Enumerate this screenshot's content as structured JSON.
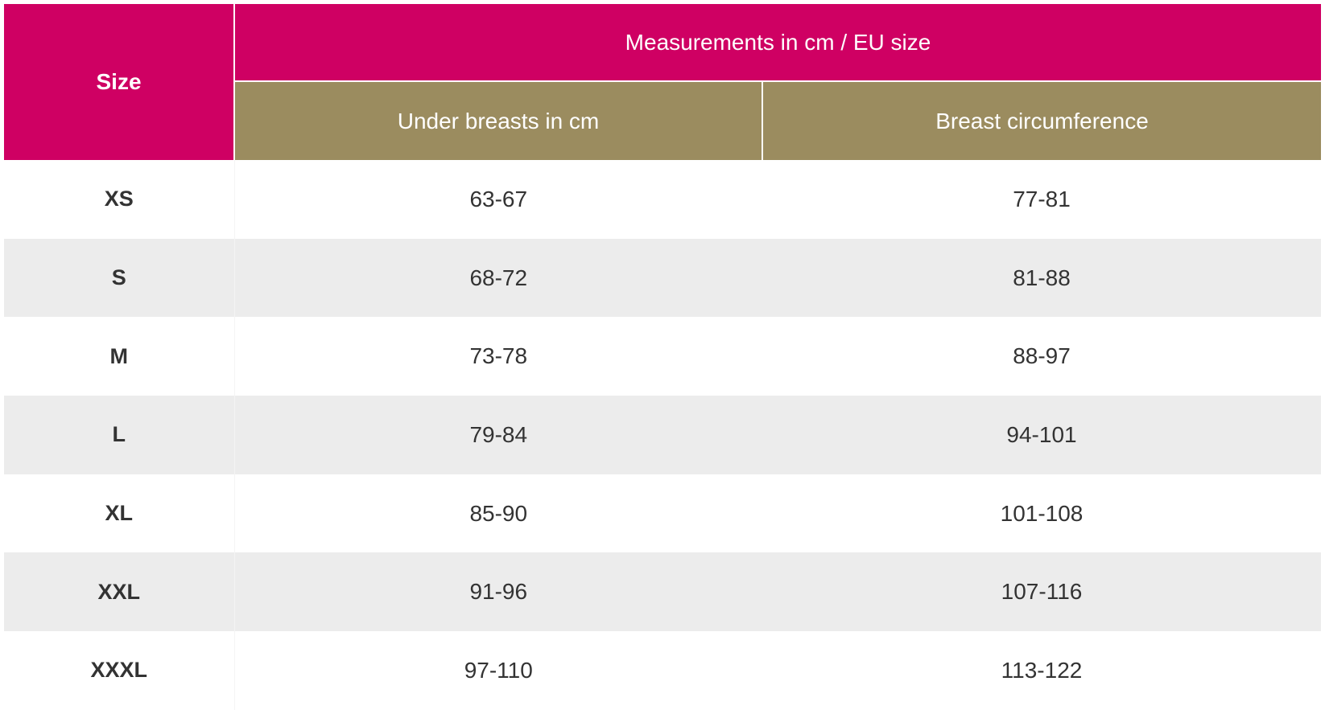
{
  "table": {
    "header": {
      "size_label": "Size",
      "group_label": "Measurements in cm / EU size",
      "under_label": "Under breasts in cm",
      "breast_label": "Breast circumference"
    },
    "rows": [
      {
        "size": "XS",
        "under": "63-67",
        "breast": "77-81"
      },
      {
        "size": "S",
        "under": "68-72",
        "breast": "81-88"
      },
      {
        "size": "M",
        "under": "73-78",
        "breast": "88-97"
      },
      {
        "size": "L",
        "under": "79-84",
        "breast": "94-101"
      },
      {
        "size": "XL",
        "under": "85-90",
        "breast": "101-108"
      },
      {
        "size": "XXL",
        "under": "91-96",
        "breast": "107-116"
      },
      {
        "size": "XXXL",
        "under": "97-110",
        "breast": "113-122"
      }
    ]
  },
  "colors": {
    "header_primary": "#cf0063",
    "header_secondary": "#9b8c5f",
    "row_alt": "#ececec",
    "text": "#333333"
  }
}
